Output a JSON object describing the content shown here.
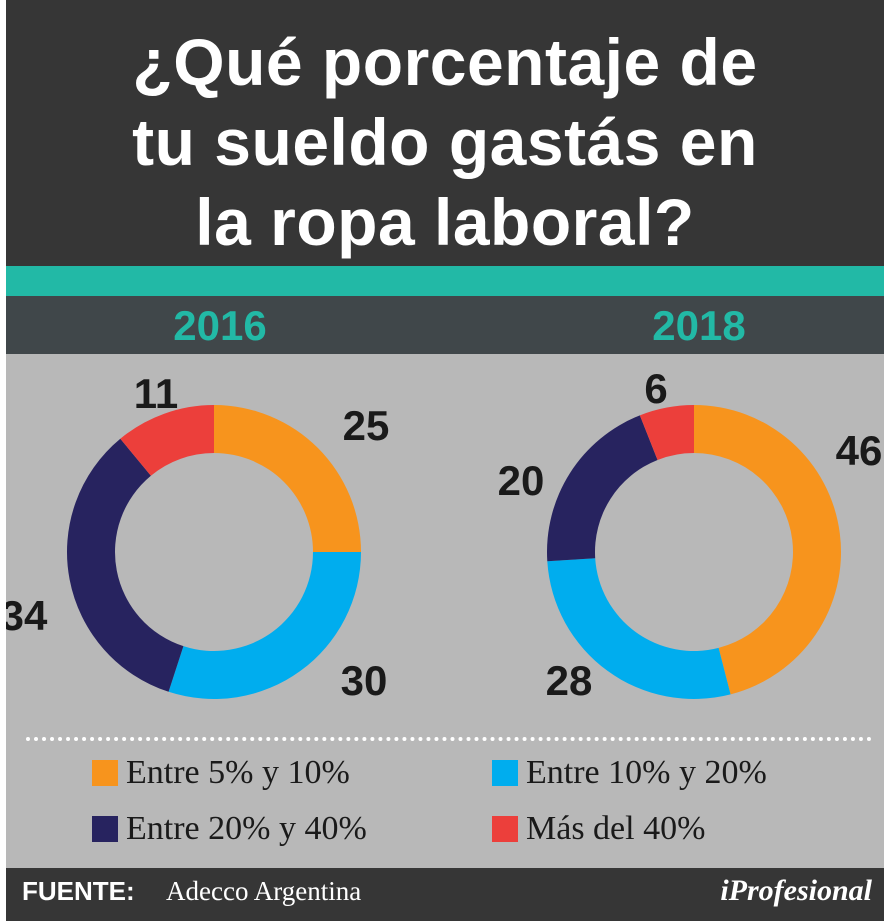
{
  "title": "¿Qué porcentaje de tu sueldo gastás en la ropa laboral?",
  "title_lines": [
    "¿Qué porcentaje de",
    "tu sueldo gastás en",
    "la ropa laboral?"
  ],
  "years": [
    "2016",
    "2018"
  ],
  "legend": [
    {
      "label": "Entre 5% y 10%",
      "color": "#f7941d"
    },
    {
      "label": "Entre 10% y 20%",
      "color": "#00adee"
    },
    {
      "label": "Entre 20% y 40%",
      "color": "#27235f"
    },
    {
      "label": "Más del 40%",
      "color": "#ec3f3b"
    }
  ],
  "footer": {
    "source_label": "FUENTE:",
    "source": "Adecco Argentina",
    "brand": "iProfesional"
  },
  "colors": {
    "title_bg": "#363636",
    "accent": "#22b9a6",
    "year_bar": "#40474a",
    "chart_bg": "#b8b8b8"
  },
  "chart_data": [
    {
      "type": "pie",
      "donut": true,
      "title": "2016",
      "categories": [
        "Entre 5% y 10%",
        "Entre 10% y 20%",
        "Entre 20% y 40%",
        "Más del 40%"
      ],
      "values": [
        25,
        30,
        34,
        11
      ],
      "data_labels": [
        "25",
        "30",
        "34",
        "11"
      ],
      "colors": [
        "#f7941d",
        "#00adee",
        "#27235f",
        "#ec3f3b"
      ],
      "legend": "bottom"
    },
    {
      "type": "pie",
      "donut": true,
      "title": "2018",
      "categories": [
        "Entre 5% y 10%",
        "Entre 10% y 20%",
        "Entre 20% y 40%",
        "Más del 40%"
      ],
      "values": [
        46,
        28,
        20,
        6
      ],
      "data_labels": [
        "46",
        "28",
        "20",
        "6"
      ],
      "colors": [
        "#f7941d",
        "#00adee",
        "#27235f",
        "#ec3f3b"
      ],
      "legend": "bottom"
    }
  ]
}
